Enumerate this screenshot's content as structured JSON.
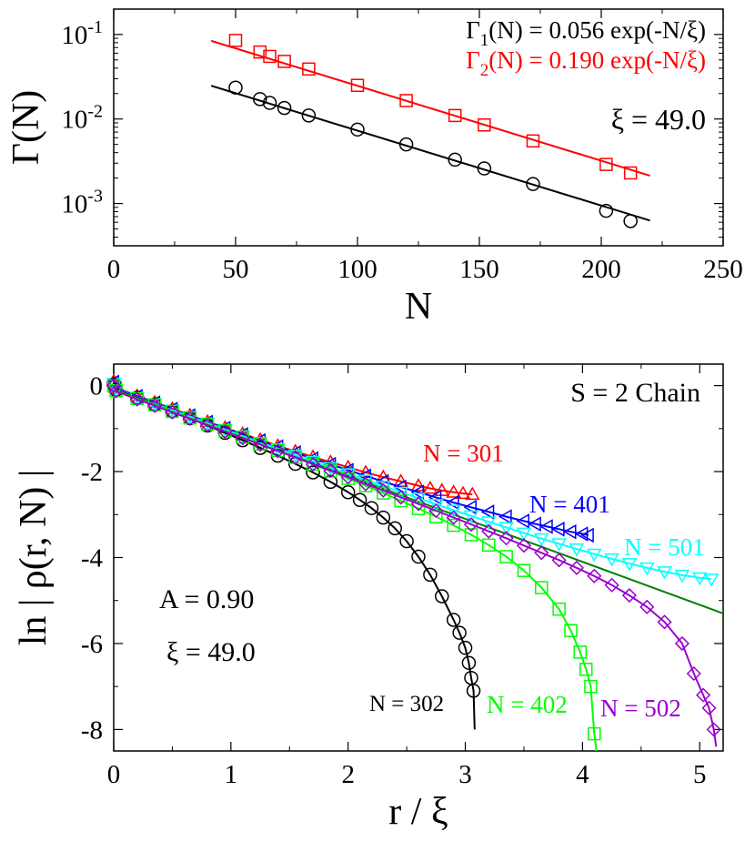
{
  "chart_data": [
    {
      "type": "scatter",
      "y_scale": "log",
      "xlabel": "N",
      "ylabel": "Γ(N)",
      "xlim": [
        0,
        250
      ],
      "ylim_log10": [
        -3.5,
        -0.7
      ],
      "x_ticks": [
        0,
        50,
        100,
        150,
        200,
        250
      ],
      "x_tick_labels": [
        "0",
        "50",
        "100",
        "150",
        "200",
        "250"
      ],
      "y_ticks_log10": [
        -3,
        -2,
        -1
      ],
      "y_tick_labels": [
        {
          "base": "10",
          "exp": "-3"
        },
        {
          "base": "10",
          "exp": "-2"
        },
        {
          "base": "10",
          "exp": "-1"
        }
      ],
      "legend": [
        {
          "gamma": "Γ",
          "sub": "1",
          "expr": "(N) = 0.056 exp(-N/ξ)",
          "color": "#000000"
        },
        {
          "gamma": "Γ",
          "sub": "2",
          "expr": "(N) = 0.190 exp(-N/ξ)",
          "color": "#ff0000"
        }
      ],
      "annotation": "ξ = 49.0",
      "series": [
        {
          "name": "Γ1",
          "marker": "circle",
          "color": "#000000",
          "x": [
            50,
            60,
            64,
            70,
            80,
            100,
            120,
            140,
            152,
            172,
            202,
            212
          ],
          "y": [
            0.0235,
            0.0172,
            0.0155,
            0.0135,
            0.011,
            0.0075,
            0.005,
            0.0033,
            0.0026,
            0.0017,
            0.00082,
            0.00062
          ],
          "fit": {
            "a": 0.056,
            "xi": 49.0,
            "x_range": [
              40,
              220
            ]
          }
        },
        {
          "name": "Γ2",
          "marker": "square",
          "color": "#ff0000",
          "x": [
            50,
            60,
            64,
            70,
            80,
            100,
            120,
            140,
            152,
            172,
            202,
            212
          ],
          "y": [
            0.085,
            0.062,
            0.055,
            0.048,
            0.039,
            0.025,
            0.0165,
            0.011,
            0.0085,
            0.0055,
            0.0029,
            0.0023
          ],
          "fit": {
            "a": 0.19,
            "xi": 49.0,
            "x_range": [
              40,
              220
            ]
          }
        }
      ]
    },
    {
      "type": "scatter",
      "xlabel": "r / ξ",
      "ylabel": "ln | ρ(r, N) |",
      "xlim": [
        0,
        5.2
      ],
      "ylim": [
        -8.5,
        0.5
      ],
      "x_ticks": [
        0,
        1,
        2,
        3,
        4,
        5
      ],
      "x_tick_labels": [
        "0",
        "1",
        "2",
        "3",
        "4",
        "5"
      ],
      "y_ticks": [
        0,
        -2,
        -4,
        -6,
        -8
      ],
      "y_tick_labels": [
        "0",
        "-2",
        "-4",
        "-6",
        "-8"
      ],
      "annotations": {
        "title": "S = 2 Chain",
        "a": "A = 0.90",
        "xi": "ξ = 49.0"
      },
      "series_labels": {
        "n301": "N = 301",
        "n401": "N = 401",
        "n501": "N = 501",
        "n302": "N = 302",
        "n402": "N = 402",
        "n502": "N = 502"
      },
      "reference_line": {
        "color": "#008000",
        "intercept": -0.1,
        "slope": -1.0
      },
      "series": [
        {
          "name": "N = 301",
          "marker": "triangle-up",
          "color": "#ff0000",
          "x": [
            0,
            0.02,
            0.2,
            0.35,
            0.5,
            0.65,
            0.8,
            0.95,
            1.1,
            1.25,
            1.4,
            1.55,
            1.7,
            1.85,
            2.0,
            2.15,
            2.3,
            2.45,
            2.6,
            2.7,
            2.8,
            2.9,
            2.98,
            3.06
          ],
          "y": [
            0.1,
            -0.05,
            -0.24,
            -0.39,
            -0.54,
            -0.69,
            -0.84,
            -0.98,
            -1.12,
            -1.26,
            -1.4,
            -1.53,
            -1.66,
            -1.78,
            -1.9,
            -2.02,
            -2.13,
            -2.23,
            -2.33,
            -2.39,
            -2.44,
            -2.48,
            -2.51,
            -2.53
          ]
        },
        {
          "name": "N = 401",
          "marker": "triangle-left",
          "color": "#0000ff",
          "x": [
            0,
            0.02,
            0.2,
            0.35,
            0.5,
            0.65,
            0.8,
            0.95,
            1.1,
            1.25,
            1.4,
            1.55,
            1.7,
            1.85,
            2.0,
            2.15,
            2.3,
            2.45,
            2.6,
            2.75,
            2.9,
            3.05,
            3.2,
            3.35,
            3.5,
            3.6,
            3.7,
            3.8,
            3.9,
            4.0,
            4.05
          ],
          "y": [
            0.08,
            -0.06,
            -0.25,
            -0.4,
            -0.55,
            -0.7,
            -0.85,
            -0.99,
            -1.14,
            -1.28,
            -1.42,
            -1.56,
            -1.7,
            -1.83,
            -1.97,
            -2.1,
            -2.23,
            -2.36,
            -2.48,
            -2.6,
            -2.72,
            -2.83,
            -2.94,
            -3.05,
            -3.15,
            -3.22,
            -3.28,
            -3.34,
            -3.4,
            -3.45,
            -3.48
          ]
        },
        {
          "name": "N = 501",
          "marker": "triangle-down",
          "color": "#00ffff",
          "x": [
            0,
            0.02,
            0.2,
            0.35,
            0.5,
            0.65,
            0.8,
            0.95,
            1.1,
            1.25,
            1.4,
            1.55,
            1.7,
            1.85,
            2.0,
            2.15,
            2.3,
            2.45,
            2.6,
            2.75,
            2.9,
            3.05,
            3.2,
            3.35,
            3.5,
            3.65,
            3.8,
            3.95,
            4.1,
            4.25,
            4.4,
            4.55,
            4.7,
            4.85,
            5.0,
            5.1
          ],
          "y": [
            0.05,
            -0.08,
            -0.27,
            -0.42,
            -0.57,
            -0.72,
            -0.87,
            -1.02,
            -1.17,
            -1.32,
            -1.47,
            -1.62,
            -1.76,
            -1.91,
            -2.05,
            -2.2,
            -2.34,
            -2.48,
            -2.62,
            -2.76,
            -2.9,
            -3.03,
            -3.17,
            -3.3,
            -3.43,
            -3.56,
            -3.68,
            -3.8,
            -3.92,
            -4.03,
            -4.14,
            -4.24,
            -4.33,
            -4.41,
            -4.47,
            -4.5
          ]
        },
        {
          "name": "N = 302",
          "marker": "circle",
          "color": "#000000",
          "x": [
            0,
            0.02,
            0.2,
            0.35,
            0.5,
            0.65,
            0.8,
            0.95,
            1.1,
            1.25,
            1.4,
            1.55,
            1.7,
            1.85,
            2.0,
            2.1,
            2.2,
            2.3,
            2.4,
            2.5,
            2.6,
            2.7,
            2.8,
            2.9,
            2.95,
            3.0,
            3.03,
            3.05,
            3.07
          ],
          "y": [
            0.02,
            -0.1,
            -0.28,
            -0.44,
            -0.6,
            -0.76,
            -0.93,
            -1.1,
            -1.27,
            -1.45,
            -1.63,
            -1.82,
            -2.02,
            -2.24,
            -2.48,
            -2.66,
            -2.85,
            -3.07,
            -3.32,
            -3.62,
            -3.98,
            -4.4,
            -4.9,
            -5.45,
            -5.75,
            -6.1,
            -6.45,
            -6.8,
            -7.1
          ]
        },
        {
          "name": "N = 402",
          "marker": "square",
          "color": "#00ff00",
          "x": [
            0,
            0.02,
            0.2,
            0.35,
            0.5,
            0.65,
            0.8,
            0.95,
            1.1,
            1.25,
            1.4,
            1.55,
            1.7,
            1.85,
            2.0,
            2.15,
            2.3,
            2.45,
            2.6,
            2.75,
            2.9,
            3.05,
            3.2,
            3.35,
            3.5,
            3.65,
            3.8,
            3.9,
            3.98,
            4.03,
            4.07,
            4.1
          ],
          "y": [
            0.0,
            -0.12,
            -0.3,
            -0.45,
            -0.6,
            -0.75,
            -0.9,
            -1.05,
            -1.2,
            -1.36,
            -1.51,
            -1.67,
            -1.83,
            -1.99,
            -2.16,
            -2.33,
            -2.5,
            -2.68,
            -2.86,
            -3.05,
            -3.25,
            -3.47,
            -3.71,
            -3.98,
            -4.3,
            -4.7,
            -5.2,
            -5.7,
            -6.2,
            -6.6,
            -7.0,
            -8.1
          ]
        },
        {
          "name": "N = 502",
          "marker": "diamond",
          "color": "#9900cc",
          "x": [
            0,
            0.02,
            0.2,
            0.35,
            0.5,
            0.65,
            0.8,
            0.95,
            1.1,
            1.25,
            1.4,
            1.55,
            1.7,
            1.85,
            2.0,
            2.15,
            2.3,
            2.45,
            2.6,
            2.75,
            2.9,
            3.05,
            3.2,
            3.35,
            3.5,
            3.65,
            3.8,
            3.95,
            4.1,
            4.25,
            4.4,
            4.55,
            4.7,
            4.85,
            4.95,
            5.03,
            5.08,
            5.12
          ],
          "y": [
            0.0,
            -0.13,
            -0.32,
            -0.47,
            -0.62,
            -0.77,
            -0.92,
            -1.07,
            -1.22,
            -1.37,
            -1.52,
            -1.67,
            -1.83,
            -1.98,
            -2.13,
            -2.29,
            -2.44,
            -2.6,
            -2.75,
            -2.91,
            -3.07,
            -3.23,
            -3.39,
            -3.55,
            -3.72,
            -3.89,
            -4.06,
            -4.24,
            -4.43,
            -4.64,
            -4.88,
            -5.15,
            -5.5,
            -6.0,
            -6.7,
            -7.2,
            -7.5,
            -8.0
          ]
        }
      ]
    }
  ]
}
